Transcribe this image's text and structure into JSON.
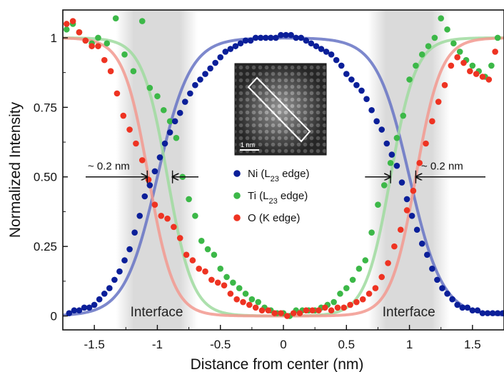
{
  "chart_data": {
    "type": "scatter",
    "xlabel": "Distance from center (nm)",
    "ylabel": "Normalized Intensity",
    "xlim": [
      -1.75,
      1.75
    ],
    "ylim": [
      -0.05,
      1.1
    ],
    "xticks": [
      {
        "v": -1.5,
        "label": "-1.5"
      },
      {
        "v": -1.0,
        "label": "-1"
      },
      {
        "v": -0.5,
        "label": "-0.5"
      },
      {
        "v": 0.0,
        "label": "0"
      },
      {
        "v": 0.5,
        "label": "0.5"
      },
      {
        "v": 1.0,
        "label": "1"
      },
      {
        "v": 1.5,
        "label": "1.5"
      }
    ],
    "yticks": [
      {
        "v": 0.0,
        "label": "0"
      },
      {
        "v": 0.25,
        "label": "0.25"
      },
      {
        "v": 0.5,
        "label": "0.50"
      },
      {
        "v": 0.75,
        "label": "0.75"
      },
      {
        "v": 1.0,
        "label": "1"
      }
    ],
    "shaded_regions": [
      {
        "x_start": -1.33,
        "x_end": -0.68,
        "label": "Interface"
      },
      {
        "x_start": 0.67,
        "x_end": 1.32,
        "label": "Interface"
      }
    ],
    "annotations": [
      {
        "text": "~ 0.2 nm",
        "y": 0.5,
        "x_from": -1.08,
        "x_to": -0.88
      },
      {
        "text": "~ 0.2 nm",
        "y": 0.5,
        "x_from": 0.85,
        "x_to": 1.05
      }
    ],
    "inset_label": "1 nm",
    "series": [
      {
        "name": "Ni (L23 edge)",
        "label_main": "Ni (L",
        "label_sub": "23",
        "label_tail": " edge)",
        "color": "#0b1f99",
        "fit_color": "#6673c4",
        "fit": {
          "base": 0.0,
          "top": 1.0,
          "centers": [
            -1.0,
            1.0
          ],
          "width": 0.13
        },
        "x": [
          -1.7,
          -1.66,
          -1.62,
          -1.58,
          -1.54,
          -1.5,
          -1.46,
          -1.42,
          -1.38,
          -1.34,
          -1.3,
          -1.26,
          -1.22,
          -1.18,
          -1.14,
          -1.1,
          -1.06,
          -1.02,
          -0.98,
          -0.94,
          -0.9,
          -0.86,
          -0.82,
          -0.78,
          -0.74,
          -0.7,
          -0.66,
          -0.62,
          -0.58,
          -0.54,
          -0.5,
          -0.46,
          -0.42,
          -0.38,
          -0.34,
          -0.3,
          -0.26,
          -0.22,
          -0.18,
          -0.14,
          -0.1,
          -0.06,
          -0.02,
          0.02,
          0.06,
          0.1,
          0.14,
          0.18,
          0.22,
          0.26,
          0.3,
          0.34,
          0.38,
          0.42,
          0.46,
          0.5,
          0.54,
          0.58,
          0.62,
          0.66,
          0.7,
          0.74,
          0.78,
          0.82,
          0.86,
          0.9,
          0.94,
          0.98,
          1.02,
          1.06,
          1.1,
          1.14,
          1.18,
          1.22,
          1.26,
          1.3,
          1.34,
          1.38,
          1.42,
          1.46,
          1.5,
          1.54,
          1.58,
          1.62,
          1.66,
          1.7,
          1.74
        ],
        "y": [
          0.01,
          0.02,
          0.02,
          0.03,
          0.03,
          0.04,
          0.06,
          0.08,
          0.1,
          0.13,
          0.16,
          0.2,
          0.24,
          0.3,
          0.36,
          0.43,
          0.47,
          0.52,
          0.57,
          0.62,
          0.66,
          0.7,
          0.73,
          0.77,
          0.8,
          0.83,
          0.85,
          0.87,
          0.89,
          0.91,
          0.93,
          0.95,
          0.96,
          0.97,
          0.98,
          0.99,
          0.99,
          1.0,
          1.0,
          1.0,
          1.0,
          1.0,
          1.01,
          1.01,
          1.01,
          1.0,
          1.0,
          0.99,
          0.98,
          0.97,
          0.96,
          0.95,
          0.94,
          0.92,
          0.9,
          0.87,
          0.85,
          0.83,
          0.81,
          0.78,
          0.74,
          0.7,
          0.67,
          0.62,
          0.58,
          0.54,
          0.48,
          0.42,
          0.36,
          0.31,
          0.26,
          0.22,
          0.17,
          0.13,
          0.1,
          0.08,
          0.06,
          0.04,
          0.03,
          0.03,
          0.02,
          0.02,
          0.01,
          0.01,
          0.01,
          0.01,
          0.01
        ]
      },
      {
        "name": "Ti (L23 edge)",
        "label_main": "Ti (L",
        "label_sub": "23",
        "label_tail": " edge)",
        "color": "#3cb848",
        "fit_color": "#9fdb9f",
        "fit": {
          "base": 0.0,
          "top": 1.0,
          "centers": [
            -0.92,
            0.85
          ],
          "width": 0.1
        },
        "x": [
          -1.72,
          -1.67,
          -1.62,
          -1.57,
          -1.52,
          -1.47,
          -1.4,
          -1.33,
          -1.26,
          -1.19,
          -1.12,
          -1.06,
          -1.0,
          -0.95,
          -0.9,
          -0.85,
          -0.8,
          -0.75,
          -0.7,
          -0.65,
          -0.6,
          -0.55,
          -0.5,
          -0.45,
          -0.4,
          -0.35,
          -0.3,
          -0.25,
          -0.2,
          -0.15,
          -0.1,
          -0.05,
          0.0,
          0.05,
          0.1,
          0.15,
          0.2,
          0.25,
          0.3,
          0.35,
          0.4,
          0.45,
          0.5,
          0.55,
          0.6,
          0.65,
          0.7,
          0.75,
          0.8,
          0.85,
          0.9,
          0.95,
          1.0,
          1.05,
          1.1,
          1.15,
          1.2,
          1.25,
          1.3,
          1.35,
          1.4,
          1.45,
          1.5,
          1.55,
          1.6,
          1.65,
          1.7
        ],
        "y": [
          1.03,
          1.05,
          1.02,
          0.99,
          0.98,
          1.0,
          0.98,
          1.07,
          0.94,
          0.88,
          1.06,
          0.82,
          0.79,
          0.74,
          0.7,
          0.64,
          0.5,
          0.42,
          0.36,
          0.27,
          0.24,
          0.22,
          0.17,
          0.14,
          0.12,
          0.1,
          0.08,
          0.06,
          0.05,
          0.03,
          0.02,
          0.01,
          0.01,
          0.0,
          0.02,
          0.02,
          0.02,
          0.02,
          0.03,
          0.04,
          0.05,
          0.08,
          0.1,
          0.13,
          0.17,
          0.2,
          0.3,
          0.4,
          0.47,
          0.55,
          0.64,
          0.72,
          0.85,
          0.9,
          0.94,
          0.97,
          1.0,
          1.07,
          1.03,
          0.98,
          0.95,
          0.92,
          0.9,
          0.88,
          0.86,
          0.9,
          1.0
        ]
      },
      {
        "name": "O (K edge)",
        "label_main": "O (K edge)",
        "label_sub": "",
        "label_tail": "",
        "color": "#ee3322",
        "fit_color": "#f2998f",
        "fit": {
          "base": 0.0,
          "top": 1.0,
          "centers": [
            -1.07,
            1.05
          ],
          "width": 0.1
        },
        "x": [
          -1.72,
          -1.67,
          -1.62,
          -1.57,
          -1.52,
          -1.47,
          -1.42,
          -1.37,
          -1.32,
          -1.27,
          -1.22,
          -1.17,
          -1.12,
          -1.07,
          -1.02,
          -0.97,
          -0.92,
          -0.87,
          -0.82,
          -0.77,
          -0.72,
          -0.67,
          -0.62,
          -0.57,
          -0.52,
          -0.47,
          -0.42,
          -0.37,
          -0.32,
          -0.27,
          -0.22,
          -0.17,
          -0.12,
          -0.07,
          -0.02,
          0.03,
          0.08,
          0.13,
          0.18,
          0.23,
          0.28,
          0.33,
          0.38,
          0.43,
          0.48,
          0.53,
          0.58,
          0.63,
          0.68,
          0.73,
          0.78,
          0.83,
          0.88,
          0.93,
          0.98,
          1.03,
          1.08,
          1.13,
          1.18,
          1.23,
          1.28,
          1.33,
          1.38,
          1.43,
          1.48,
          1.53,
          1.58,
          1.63,
          1.68
        ],
        "y": [
          1.05,
          1.06,
          1.02,
          0.99,
          0.97,
          0.97,
          0.92,
          0.88,
          0.8,
          0.72,
          0.67,
          0.62,
          0.56,
          0.49,
          0.4,
          0.36,
          0.35,
          0.32,
          0.28,
          0.22,
          0.2,
          0.17,
          0.16,
          0.13,
          0.12,
          0.11,
          0.08,
          0.06,
          0.05,
          0.04,
          0.03,
          0.02,
          0.02,
          0.01,
          0.01,
          0.0,
          0.01,
          0.01,
          0.02,
          0.02,
          0.02,
          0.03,
          0.02,
          0.03,
          0.03,
          0.04,
          0.05,
          0.06,
          0.08,
          0.1,
          0.14,
          0.19,
          0.25,
          0.31,
          0.38,
          0.45,
          0.55,
          0.62,
          0.7,
          0.77,
          0.83,
          0.9,
          0.93,
          0.91,
          0.88,
          0.87,
          0.86,
          0.85,
          0.95
        ]
      }
    ]
  }
}
